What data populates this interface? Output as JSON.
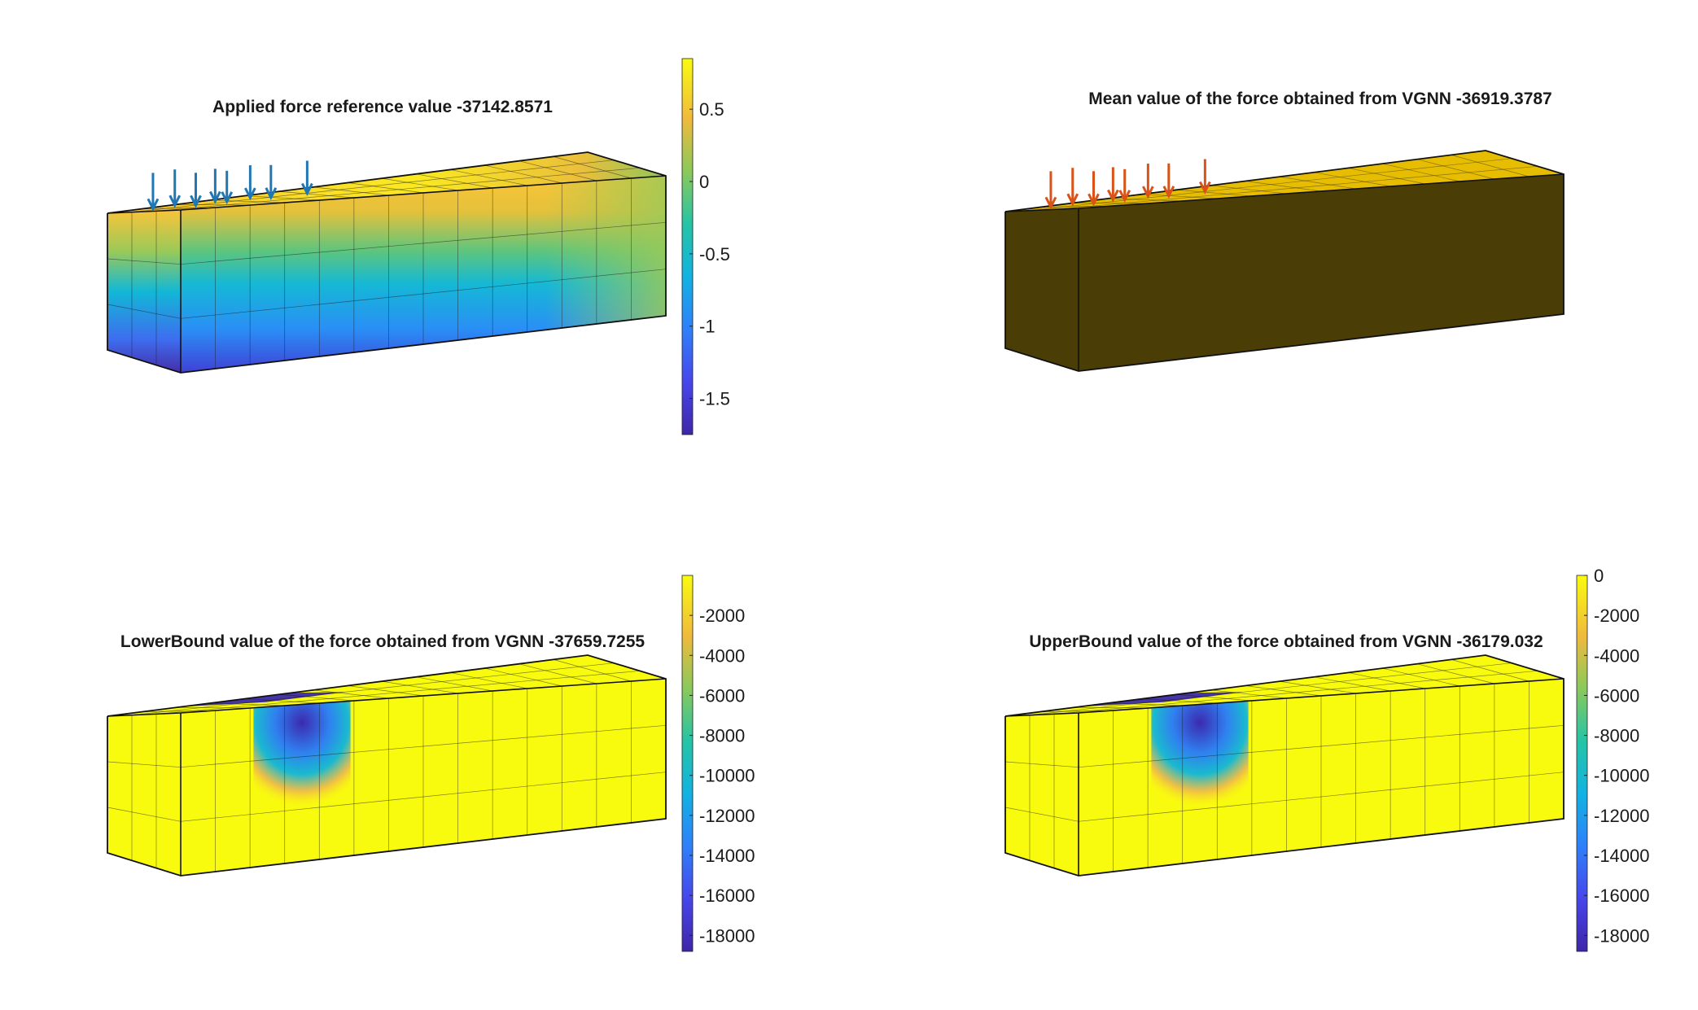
{
  "figure": {
    "background": "#ffffff",
    "panels": [
      {
        "title": "Applied force reference value -37142.8571",
        "render": "gradient",
        "arrow_color": "#1f77b4",
        "colorbar": {
          "ticks": [
            "0.5",
            "0",
            "-0.5",
            "-1",
            "-1.5"
          ]
        }
      },
      {
        "title": "Mean value of the force obtained from VGNN -36919.3787",
        "render": "solid",
        "arrow_color": "#d95319",
        "top_color": "#e6bd00",
        "side_color": "#4a3d05",
        "colorbar": null
      },
      {
        "title": "LowerBound value of the force obtained from VGNN -37659.7255",
        "render": "hotspot",
        "colorbar": {
          "ticks": [
            "-2000",
            "-4000",
            "-6000",
            "-8000",
            "-10000",
            "-12000",
            "-14000",
            "-16000",
            "-18000"
          ]
        }
      },
      {
        "title": "UpperBound value of the force obtained from VGNN -36179.032",
        "render": "hotspot",
        "colorbar": {
          "ticks": [
            "0",
            "-2000",
            "-4000",
            "-6000",
            "-8000",
            "-10000",
            "-12000",
            "-14000",
            "-16000",
            "-18000"
          ]
        }
      }
    ]
  },
  "chart_data": [
    {
      "type": "heatmap",
      "title": "Applied force reference value -37142.8571",
      "colormap": "parula",
      "clim": [
        -1.75,
        0.85
      ],
      "colorbar_ticks": [
        0.5,
        0,
        -0.5,
        -1,
        -1.5
      ],
      "mesh": {
        "elements_x": 14,
        "elements_y": 3,
        "elements_z": 3
      },
      "load_arrows": 8
    },
    {
      "type": "heatmap",
      "title": "Mean value of the force obtained from VGNN -36919.3787",
      "colormap": "uniform",
      "mesh": {
        "elements_x": 14,
        "elements_y": 3,
        "elements_z": 3
      },
      "load_arrows": 8
    },
    {
      "type": "heatmap",
      "title": "LowerBound value of the force obtained from VGNN -37659.7255",
      "colormap": "parula",
      "clim": [
        -18800,
        0
      ],
      "colorbar_ticks": [
        -2000,
        -4000,
        -6000,
        -8000,
        -10000,
        -12000,
        -14000,
        -16000,
        -18000
      ],
      "mesh": {
        "elements_x": 14,
        "elements_y": 3,
        "elements_z": 3
      }
    },
    {
      "type": "heatmap",
      "title": "UpperBound value of the force obtained from VGNN -36179.032",
      "colormap": "parula",
      "clim": [
        -18800,
        0
      ],
      "colorbar_ticks": [
        0,
        -2000,
        -4000,
        -6000,
        -8000,
        -10000,
        -12000,
        -14000,
        -16000,
        -18000
      ],
      "mesh": {
        "elements_x": 14,
        "elements_y": 3,
        "elements_z": 3
      }
    }
  ]
}
